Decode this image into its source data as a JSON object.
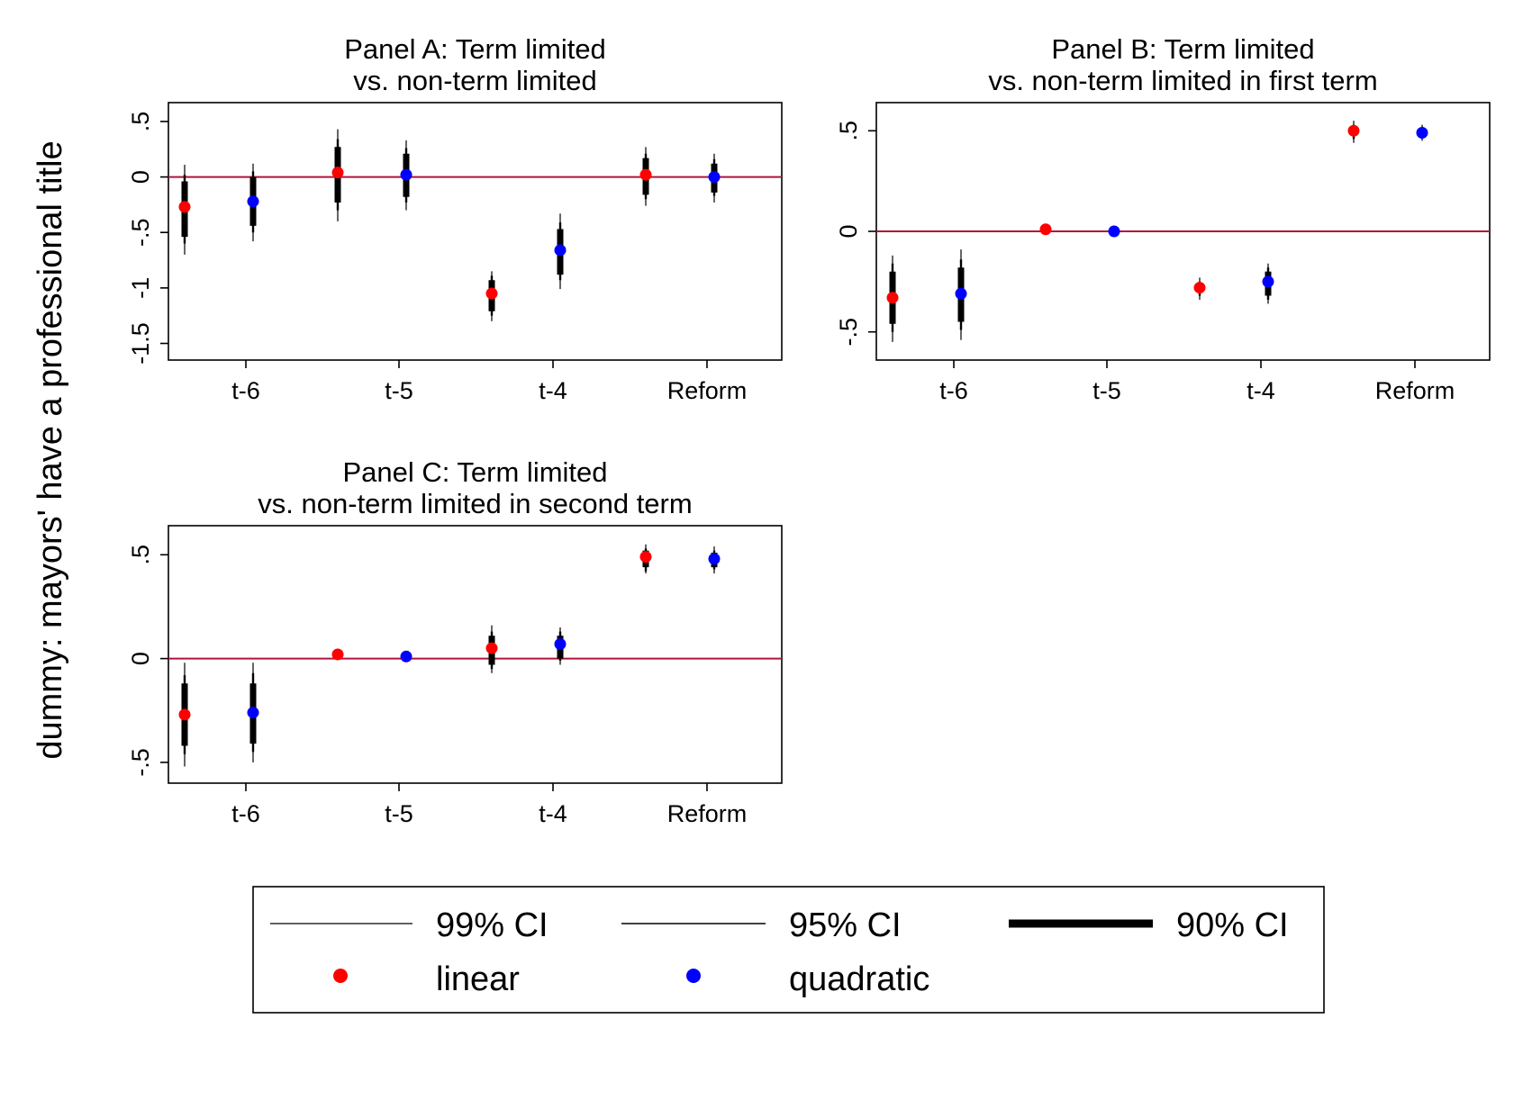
{
  "ylabel": "dummy: mayors' have a professional title",
  "colors": {
    "linear": "#ff0000",
    "quadratic": "#0000ff",
    "zero_line": "#b0143c",
    "ci": "#000000"
  },
  "chart_data": [
    {
      "type": "scatter",
      "title_lines": [
        "Panel A: Term limited",
        "vs. non-term limited"
      ],
      "categories": [
        "t-6",
        "t-5",
        "t-4",
        "Reform"
      ],
      "yticks": [
        ".5",
        "0",
        "-.5",
        "-1",
        "-1.5"
      ],
      "ytick_values": [
        0.5,
        0,
        -0.5,
        -1,
        -1.5
      ],
      "ylim": [
        -1.65,
        0.67
      ],
      "series": [
        {
          "name": "linear",
          "color": "#ff0000",
          "points": [
            {
              "x": "t-6",
              "y": -0.27,
              "ci90": [
                -0.54,
                -0.04
              ],
              "ci95": [
                -0.6,
                0.02
              ],
              "ci99": [
                -0.7,
                0.11
              ]
            },
            {
              "x": "t-5",
              "y": 0.04,
              "ci90": [
                -0.23,
                0.27
              ],
              "ci95": [
                -0.3,
                0.34
              ],
              "ci99": [
                -0.4,
                0.43
              ]
            },
            {
              "x": "t-4",
              "y": -1.05,
              "ci90": [
                -1.21,
                -0.93
              ],
              "ci95": [
                -1.25,
                -0.89
              ],
              "ci99": [
                -1.3,
                -0.85
              ]
            },
            {
              "x": "Reform",
              "y": 0.02,
              "ci90": [
                -0.16,
                0.17
              ],
              "ci95": [
                -0.2,
                0.21
              ],
              "ci99": [
                -0.26,
                0.27
              ]
            }
          ]
        },
        {
          "name": "quadratic",
          "color": "#0000ff",
          "points": [
            {
              "x": "t-6",
              "y": -0.22,
              "ci90": [
                -0.44,
                0.0
              ],
              "ci95": [
                -0.5,
                0.05
              ],
              "ci99": [
                -0.58,
                0.12
              ]
            },
            {
              "x": "t-5",
              "y": 0.02,
              "ci90": [
                -0.18,
                0.21
              ],
              "ci95": [
                -0.23,
                0.26
              ],
              "ci99": [
                -0.3,
                0.33
              ]
            },
            {
              "x": "t-4",
              "y": -0.66,
              "ci90": [
                -0.88,
                -0.47
              ],
              "ci95": [
                -0.93,
                -0.41
              ],
              "ci99": [
                -1.01,
                -0.33
              ]
            },
            {
              "x": "Reform",
              "y": 0.0,
              "ci90": [
                -0.14,
                0.12
              ],
              "ci95": [
                -0.17,
                0.16
              ],
              "ci99": [
                -0.23,
                0.21
              ]
            }
          ]
        }
      ]
    },
    {
      "type": "scatter",
      "title_lines": [
        "Panel B: Term limited",
        "vs. non-term limited in first term"
      ],
      "categories": [
        "t-6",
        "t-5",
        "t-4",
        "Reform"
      ],
      "yticks": [
        ".5",
        "0",
        "-.5"
      ],
      "ytick_values": [
        0.5,
        0,
        -0.5
      ],
      "ylim": [
        -0.64,
        0.64
      ],
      "series": [
        {
          "name": "linear",
          "color": "#ff0000",
          "points": [
            {
              "x": "t-6",
              "y": -0.33,
              "ci90": [
                -0.46,
                -0.2
              ],
              "ci95": [
                -0.5,
                -0.16
              ],
              "ci99": [
                -0.55,
                -0.12
              ]
            },
            {
              "x": "t-5",
              "y": 0.01,
              "ci90": [
                0.0,
                0.02
              ],
              "ci95": [
                -0.005,
                0.025
              ],
              "ci99": [
                -0.01,
                0.03
              ]
            },
            {
              "x": "t-4",
              "y": -0.28,
              "ci90": [
                -0.3,
                -0.26
              ],
              "ci95": [
                -0.32,
                -0.25
              ],
              "ci99": [
                -0.34,
                -0.23
              ]
            },
            {
              "x": "Reform",
              "y": 0.5,
              "ci90": [
                0.48,
                0.52
              ],
              "ci95": [
                0.46,
                0.53
              ],
              "ci99": [
                0.44,
                0.55
              ]
            }
          ]
        },
        {
          "name": "quadratic",
          "color": "#0000ff",
          "points": [
            {
              "x": "t-6",
              "y": -0.31,
              "ci90": [
                -0.45,
                -0.18
              ],
              "ci95": [
                -0.49,
                -0.14
              ],
              "ci99": [
                -0.54,
                -0.09
              ]
            },
            {
              "x": "t-5",
              "y": 0.0,
              "ci90": [
                -0.005,
                0.008
              ],
              "ci95": [
                -0.008,
                0.012
              ],
              "ci99": [
                -0.012,
                0.016
              ]
            },
            {
              "x": "t-4",
              "y": -0.25,
              "ci90": [
                -0.32,
                -0.2
              ],
              "ci95": [
                -0.34,
                -0.18
              ],
              "ci99": [
                -0.36,
                -0.16
              ]
            },
            {
              "x": "Reform",
              "y": 0.49,
              "ci90": [
                0.47,
                0.51
              ],
              "ci95": [
                0.46,
                0.52
              ],
              "ci99": [
                0.45,
                0.53
              ]
            }
          ]
        }
      ]
    },
    {
      "type": "scatter",
      "title_lines": [
        "Panel C: Term limited",
        "vs. non-term limited in second term"
      ],
      "categories": [
        "t-6",
        "t-5",
        "t-4",
        "Reform"
      ],
      "yticks": [
        ".5",
        "0",
        "-.5"
      ],
      "ytick_values": [
        0.5,
        0,
        -0.5
      ],
      "ylim": [
        -0.6,
        0.64
      ],
      "series": [
        {
          "name": "linear",
          "color": "#ff0000",
          "points": [
            {
              "x": "t-6",
              "y": -0.27,
              "ci90": [
                -0.42,
                -0.12
              ],
              "ci95": [
                -0.46,
                -0.08
              ],
              "ci99": [
                -0.52,
                -0.02
              ]
            },
            {
              "x": "t-5",
              "y": 0.02,
              "ci90": [
                0.01,
                0.03
              ],
              "ci95": [
                0.005,
                0.035
              ],
              "ci99": [
                0.0,
                0.04
              ]
            },
            {
              "x": "t-4",
              "y": 0.05,
              "ci90": [
                -0.03,
                0.11
              ],
              "ci95": [
                -0.05,
                0.13
              ],
              "ci99": [
                -0.07,
                0.16
              ]
            },
            {
              "x": "Reform",
              "y": 0.49,
              "ci90": [
                0.44,
                0.52
              ],
              "ci95": [
                0.42,
                0.53
              ],
              "ci99": [
                0.41,
                0.55
              ]
            }
          ]
        },
        {
          "name": "quadratic",
          "color": "#0000ff",
          "points": [
            {
              "x": "t-6",
              "y": -0.26,
              "ci90": [
                -0.41,
                -0.12
              ],
              "ci95": [
                -0.45,
                -0.07
              ],
              "ci99": [
                -0.5,
                -0.02
              ]
            },
            {
              "x": "t-5",
              "y": 0.01,
              "ci90": [
                0.0,
                0.02
              ],
              "ci95": [
                -0.005,
                0.025
              ],
              "ci99": [
                -0.01,
                0.03
              ]
            },
            {
              "x": "t-4",
              "y": 0.07,
              "ci90": [
                0.0,
                0.11
              ],
              "ci95": [
                -0.01,
                0.13
              ],
              "ci99": [
                -0.03,
                0.15
              ]
            },
            {
              "x": "Reform",
              "y": 0.48,
              "ci90": [
                0.44,
                0.51
              ],
              "ci95": [
                0.43,
                0.52
              ],
              "ci99": [
                0.41,
                0.54
              ]
            }
          ]
        }
      ]
    }
  ],
  "legend": {
    "items": [
      {
        "key": "ci99",
        "label": "99% CI"
      },
      {
        "key": "ci95",
        "label": "95% CI"
      },
      {
        "key": "ci90",
        "label": "90% CI"
      },
      {
        "key": "linear",
        "label": "linear"
      },
      {
        "key": "quadratic",
        "label": "quadratic"
      }
    ]
  }
}
